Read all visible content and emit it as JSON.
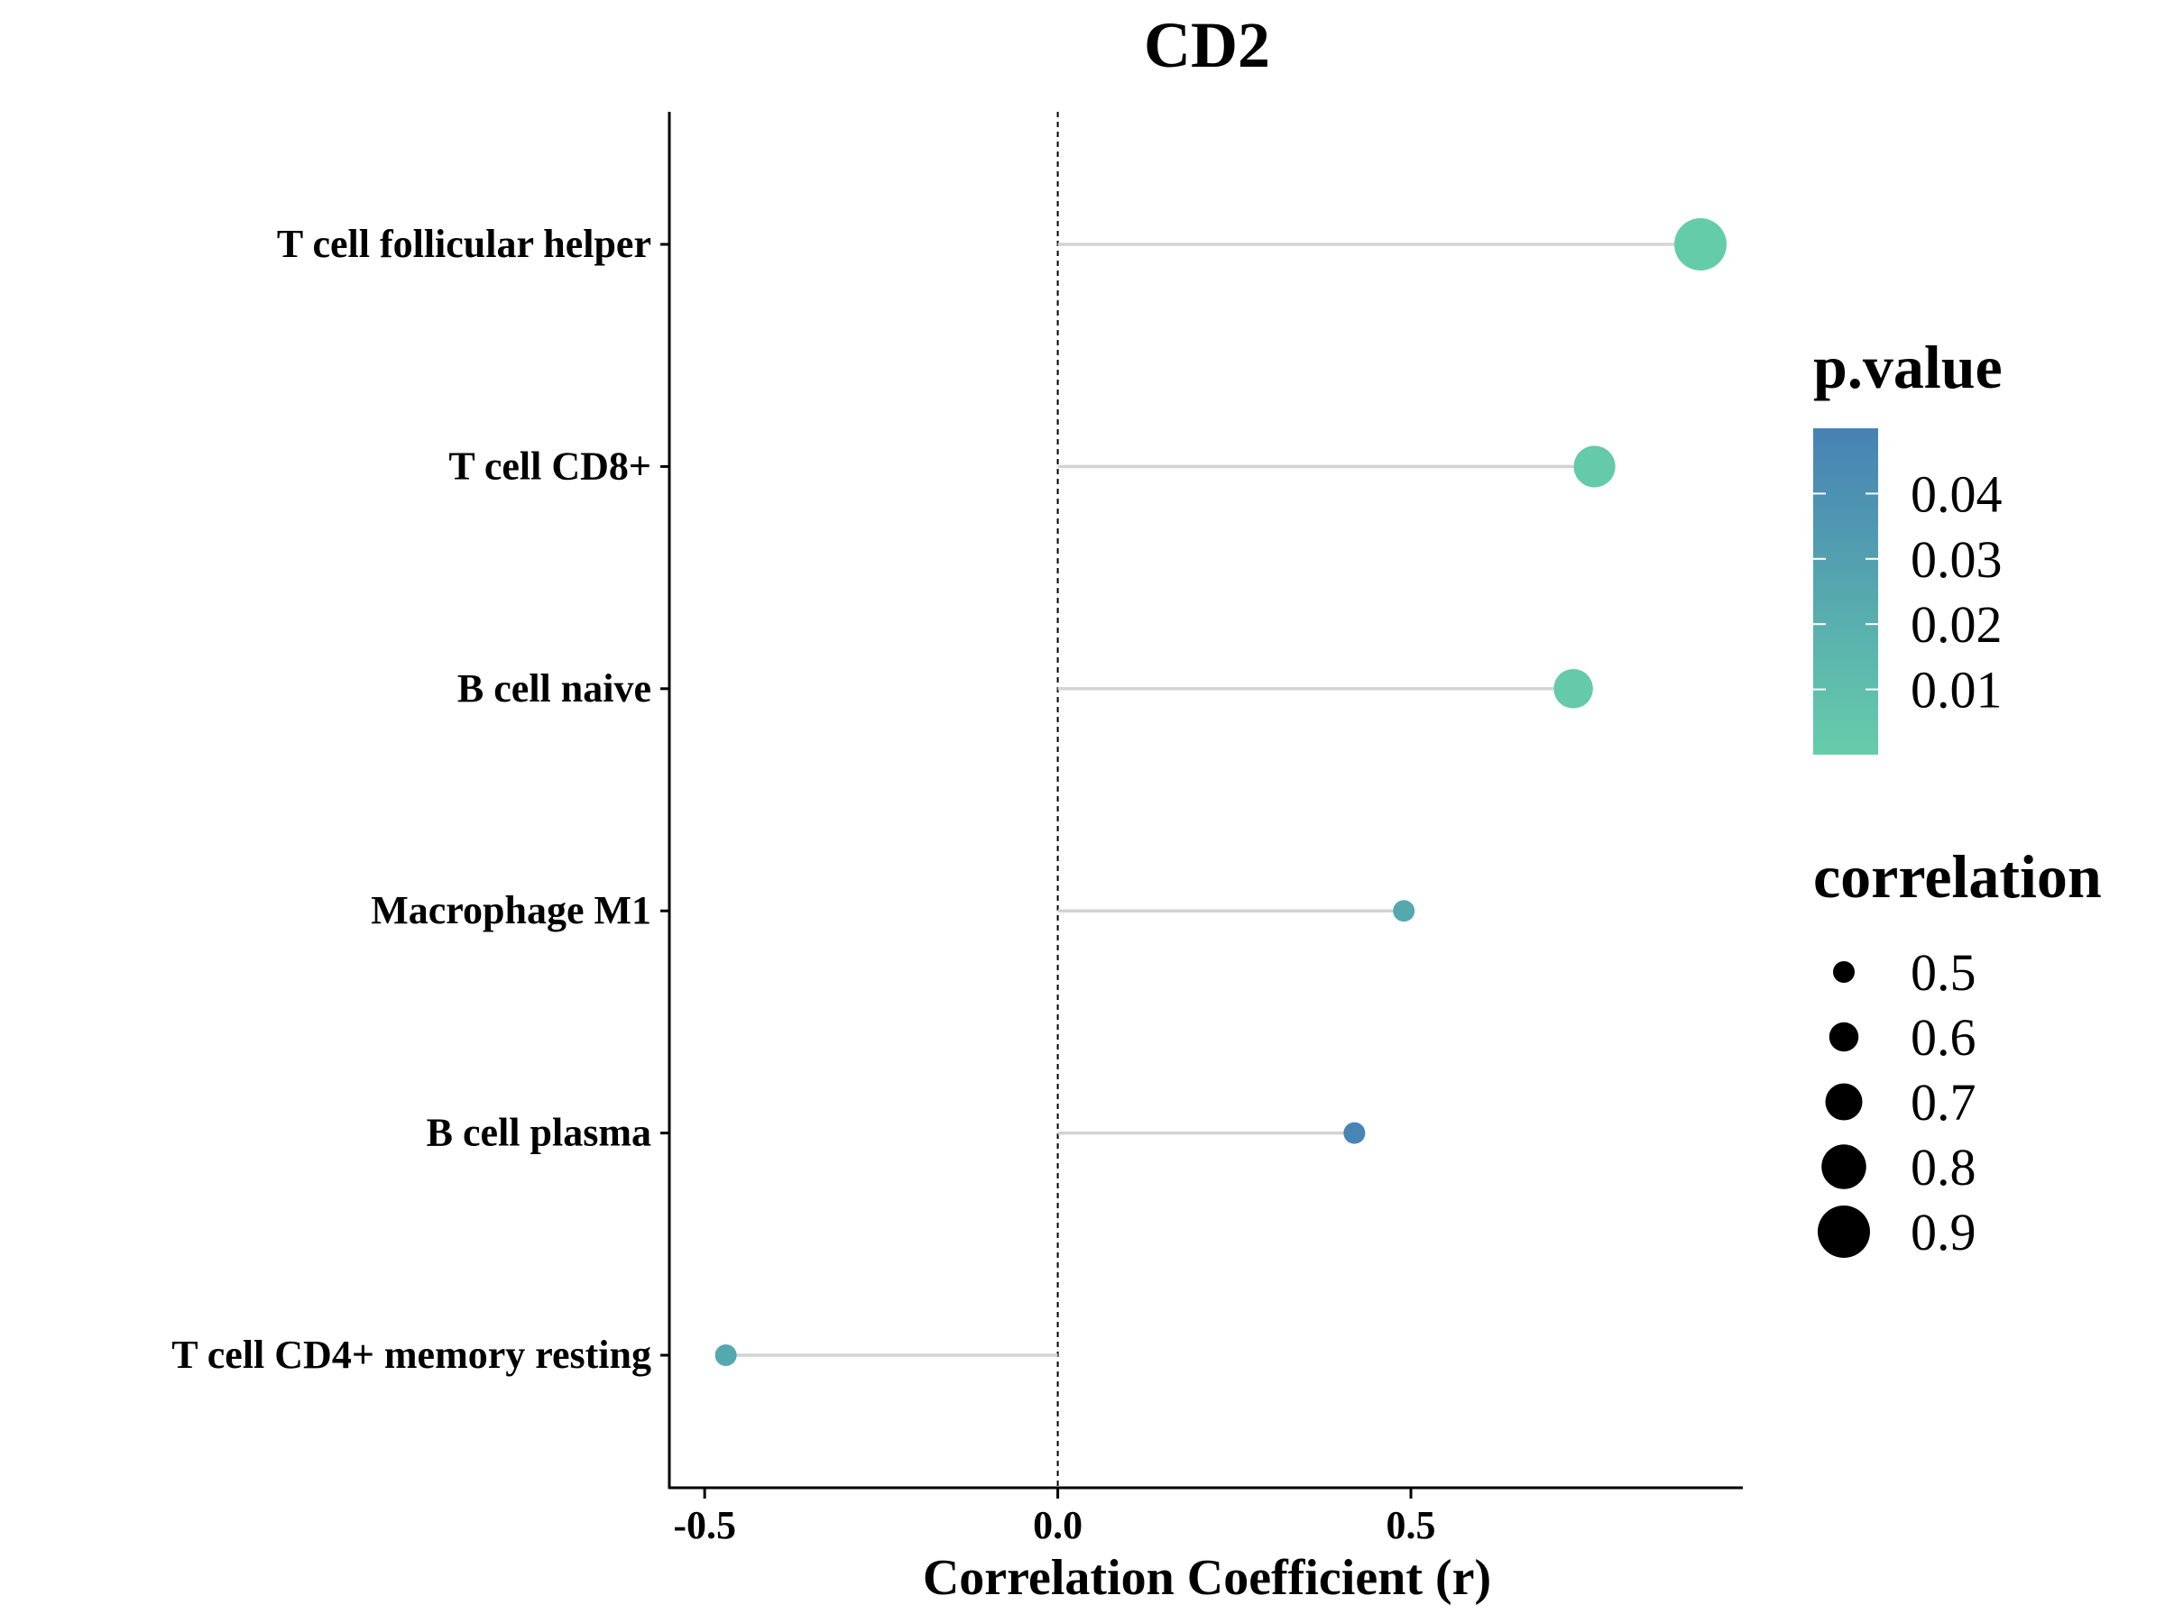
{
  "chart_data": {
    "type": "scatter",
    "style": "lollipop",
    "title": "CD2",
    "xlabel": "Correlation Coefficient (r)",
    "ylabel": "",
    "xlim": [
      -0.55,
      0.97
    ],
    "xticks": [
      -0.5,
      0.0,
      0.5
    ],
    "xtick_labels": [
      "-0.5",
      "0.0",
      "0.5"
    ],
    "reference_line": {
      "x": 0.0,
      "style": "dotted"
    },
    "grid": false,
    "categories": [
      "T cell follicular helper",
      "T cell CD8+",
      "B cell naive",
      "Macrophage M1",
      "B cell plasma",
      "T cell CD4+ memory resting"
    ],
    "values": [
      0.91,
      0.76,
      0.73,
      0.49,
      0.42,
      -0.47
    ],
    "p_values": [
      0.001,
      0.002,
      0.002,
      0.025,
      0.048,
      0.025
    ],
    "correlation_size": [
      0.91,
      0.76,
      0.73,
      0.49,
      0.42,
      0.47
    ],
    "legend_color": {
      "title": "p.value",
      "ticks": [
        0.04,
        0.03,
        0.02,
        0.01
      ],
      "tick_labels": [
        "0.04",
        "0.03",
        "0.02",
        "0.01"
      ],
      "range": [
        0.0,
        0.05
      ],
      "low_color": "#66CDAA",
      "high_color": "#4682B4",
      "placement": "right"
    },
    "legend_size": {
      "title": "correlation",
      "values": [
        0.5,
        0.6,
        0.7,
        0.8,
        0.9
      ],
      "labels": [
        "0.5",
        "0.6",
        "0.7",
        "0.8",
        "0.9"
      ],
      "placement": "right"
    },
    "colors": {
      "stem": "#d3d3d3",
      "axis": "#000000",
      "text": "#000000"
    }
  }
}
